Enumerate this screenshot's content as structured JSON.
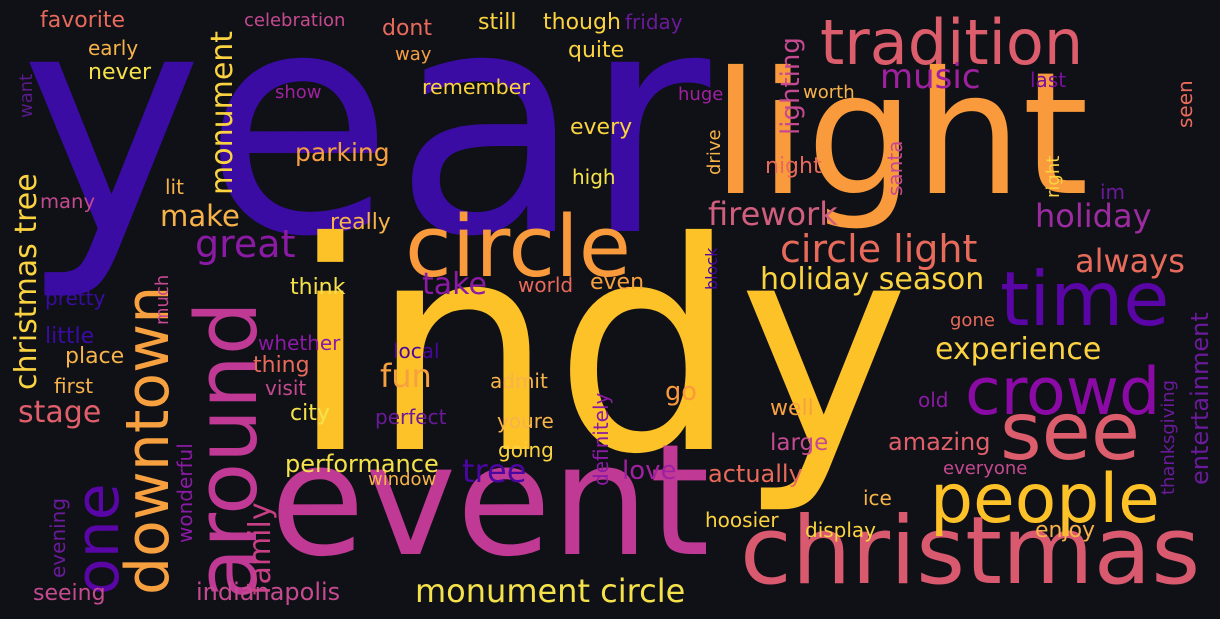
{
  "words": [
    {
      "t": "year",
      "c": "#3a0ca3"
    },
    {
      "t": "indy",
      "c": "#fec229"
    },
    {
      "t": "event",
      "c": "#c03a95"
    },
    {
      "t": "light",
      "c": "#f99a3c"
    },
    {
      "t": "christmas",
      "c": "#d95a6f"
    },
    {
      "t": "circle",
      "c": "#f99a3c"
    },
    {
      "t": "time",
      "c": "#5a05a6"
    },
    {
      "t": "see",
      "c": "#dc5d6b"
    },
    {
      "t": "around",
      "c": "#c03a95"
    },
    {
      "t": "tradition",
      "c": "#dc5d6b"
    },
    {
      "t": "crowd",
      "c": "#8b0aa5"
    },
    {
      "t": "people",
      "c": "#fec229"
    },
    {
      "t": "downtown",
      "c": "#f7a040"
    },
    {
      "t": "one",
      "c": "#5a05a6"
    },
    {
      "t": "circle light",
      "c": "#e86a5a"
    },
    {
      "t": "monument circle",
      "c": "#f5e24b"
    },
    {
      "t": "firework",
      "c": "#d05f7d"
    },
    {
      "t": "music",
      "c": "#a021a0"
    },
    {
      "t": "christmas tree",
      "c": "#fbd341"
    },
    {
      "t": "experience",
      "c": "#fbd341"
    },
    {
      "t": "family",
      "c": "#c83f85"
    },
    {
      "t": "monument",
      "c": "#fbd341"
    },
    {
      "t": "great",
      "c": "#8b1aa5"
    },
    {
      "t": "holiday",
      "c": "#9c2ba0"
    },
    {
      "t": "always",
      "c": "#e86a5a"
    },
    {
      "t": "holiday season",
      "c": "#fbd341"
    },
    {
      "t": "make",
      "c": "#f7b34a"
    },
    {
      "t": "take",
      "c": "#8b1aa5"
    },
    {
      "t": "stage",
      "c": "#e05f6a"
    },
    {
      "t": "fun",
      "c": "#f7a040"
    },
    {
      "t": "tree",
      "c": "#4a06a0"
    },
    {
      "t": "amazing",
      "c": "#e05f6a"
    },
    {
      "t": "performance",
      "c": "#f5e24b"
    },
    {
      "t": "indianapolis",
      "c": "#c54a90"
    },
    {
      "t": "go",
      "c": "#f99a3c"
    },
    {
      "t": "love",
      "c": "#a021a0"
    },
    {
      "t": "parking",
      "c": "#f7a040"
    },
    {
      "t": "large",
      "c": "#c54a90"
    },
    {
      "t": "actually",
      "c": "#e86a5a"
    },
    {
      "t": "lighting",
      "c": "#c54a90"
    },
    {
      "t": "favorite",
      "c": "#e86a5a"
    },
    {
      "t": "celebration",
      "c": "#c54a90"
    },
    {
      "t": "dont",
      "c": "#e86a5a"
    },
    {
      "t": "still",
      "c": "#fbd341"
    },
    {
      "t": "though",
      "c": "#fbd341"
    },
    {
      "t": "friday",
      "c": "#6a1a9a"
    },
    {
      "t": "early",
      "c": "#f7b34a"
    },
    {
      "t": "never",
      "c": "#f5e24b"
    },
    {
      "t": "way",
      "c": "#f7a040"
    },
    {
      "t": "quite",
      "c": "#fbd341"
    },
    {
      "t": "want",
      "c": "#5a1a8a"
    },
    {
      "t": "show",
      "c": "#a021a0"
    },
    {
      "t": "remember",
      "c": "#fbd341"
    },
    {
      "t": "worth",
      "c": "#f7b34a"
    },
    {
      "t": "last",
      "c": "#7a10a0"
    },
    {
      "t": "seen",
      "c": "#e86a5a"
    },
    {
      "t": "huge",
      "c": "#a021a0"
    },
    {
      "t": "every",
      "c": "#fbd341"
    },
    {
      "t": "drive",
      "c": "#f7b34a"
    },
    {
      "t": "right",
      "c": "#fbd341"
    },
    {
      "t": "night",
      "c": "#e86a5a"
    },
    {
      "t": "santa",
      "c": "#c54a90"
    },
    {
      "t": "im",
      "c": "#6a1a9a"
    },
    {
      "t": "high",
      "c": "#f5e24b"
    },
    {
      "t": "lit",
      "c": "#f7b34a"
    },
    {
      "t": "many",
      "c": "#c54a90"
    },
    {
      "t": "really",
      "c": "#f7b34a"
    },
    {
      "t": "much",
      "c": "#c54a90"
    },
    {
      "t": "pretty",
      "c": "#3a0ca3"
    },
    {
      "t": "think",
      "c": "#f5e24b"
    },
    {
      "t": "world",
      "c": "#e86a5a"
    },
    {
      "t": "even",
      "c": "#f7a040"
    },
    {
      "t": "block",
      "c": "#4a06a0"
    },
    {
      "t": "little",
      "c": "#3a0ca3"
    },
    {
      "t": "whether",
      "c": "#8b1aa5"
    },
    {
      "t": "local",
      "c": "#4a06a0"
    },
    {
      "t": "place",
      "c": "#f7b34a"
    },
    {
      "t": "thing",
      "c": "#e86a5a"
    },
    {
      "t": "visit",
      "c": "#c54a90"
    },
    {
      "t": "admit",
      "c": "#f7b34a"
    },
    {
      "t": "first",
      "c": "#f7b34a"
    },
    {
      "t": "city",
      "c": "#f5e24b"
    },
    {
      "t": "perfect",
      "c": "#6a1a9a"
    },
    {
      "t": "youre",
      "c": "#f7b34a"
    },
    {
      "t": "definitely",
      "c": "#8b1aa5"
    },
    {
      "t": "going",
      "c": "#fbd341"
    },
    {
      "t": "wonderful",
      "c": "#8b1aa5"
    },
    {
      "t": "window",
      "c": "#f7b34a"
    },
    {
      "t": "evening",
      "c": "#6a1a9a"
    },
    {
      "t": "seeing",
      "c": "#c54a90"
    },
    {
      "t": "gone",
      "c": "#e86a5a"
    },
    {
      "t": "old",
      "c": "#8b1aa5"
    },
    {
      "t": "well",
      "c": "#f7a040"
    },
    {
      "t": "everyone",
      "c": "#c54a90"
    },
    {
      "t": "thanksgiving",
      "c": "#6a1a9a"
    },
    {
      "t": "entertainment",
      "c": "#6a1a9a"
    },
    {
      "t": "ice",
      "c": "#f7b34a"
    },
    {
      "t": "hoosier",
      "c": "#fbd341"
    },
    {
      "t": "display",
      "c": "#fbd341"
    },
    {
      "t": "enjoy",
      "c": "#f7b34a"
    }
  ]
}
